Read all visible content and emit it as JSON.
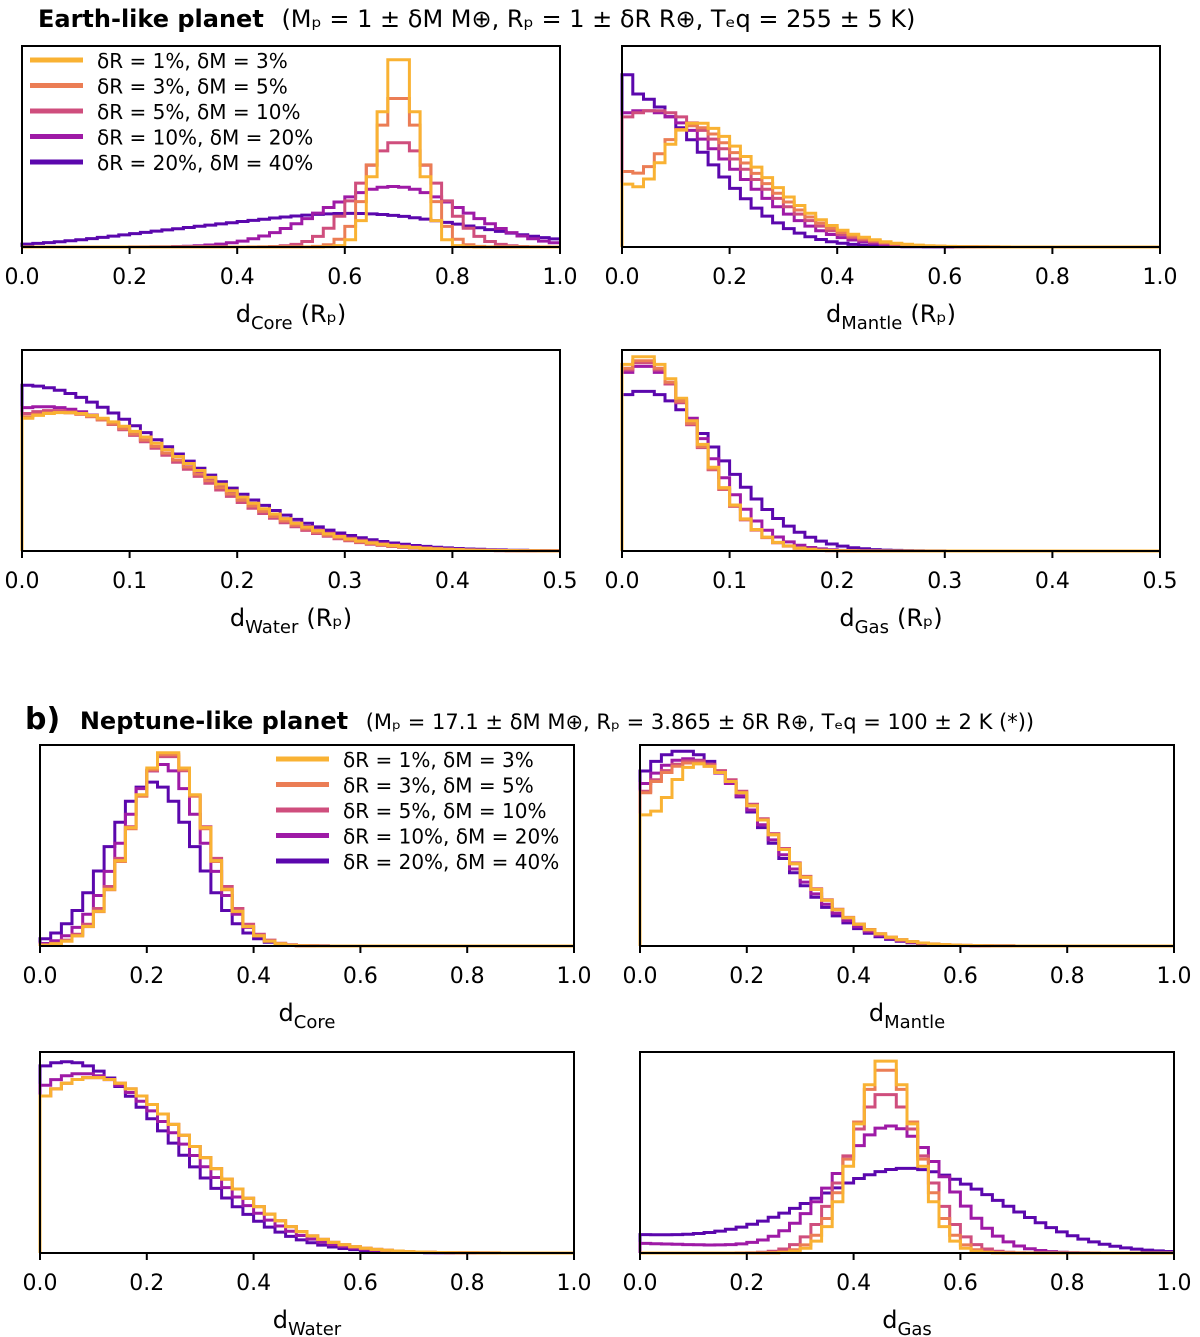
{
  "figure": {
    "series_colors": [
      "#F9B233",
      "#EB7D55",
      "#CF4E7D",
      "#9E1AA6",
      "#5B07AD"
    ],
    "legend": [
      {
        "label": "δR = 1%, δM = 3%",
        "color": "#F9B233"
      },
      {
        "label": "δR = 3%, δM = 5%",
        "color": "#EB7D55"
      },
      {
        "label": "δR = 5%, δM = 10%",
        "color": "#CF4E7D"
      },
      {
        "label": "δR = 10%, δM = 20%",
        "color": "#9E1AA6"
      },
      {
        "label": "δR = 20%, δM = 40%",
        "color": "#5B07AD"
      }
    ],
    "section_a": {
      "panel_letter": "",
      "title_bold": "Earth-like planet",
      "title_params": "(Mₚ = 1 ± δM M⊕, Rₚ = 1 ± δR R⊕, Tₑq = 255 ± 5 K)"
    },
    "section_b": {
      "panel_letter": "b)",
      "title_bold": "Neptune-like planet",
      "title_params": "(Mₚ = 17.1 ± δM M⊕, Rₚ = 3.865 ± δR R⊕, Tₑq = 100 ± 2 K (*))"
    }
  },
  "chart_data": [
    {
      "type": "histogram-step",
      "section": "a",
      "xlabel_main": "d",
      "xlabel_sub": "Core",
      "xlabel_unit": "(Rₚ)",
      "xlim": [
        0,
        1
      ],
      "xticks": [
        0.0,
        0.2,
        0.4,
        0.6,
        0.8,
        1.0
      ],
      "tick_labels": [
        "0.0",
        "0.2",
        "0.4",
        "0.6",
        "0.8",
        "1.0"
      ],
      "ylim": [
        0,
        1.03
      ],
      "yticks": false,
      "series": [
        {
          "name": "δR = 1%, δM = 3%",
          "peaks": [
            [
              0.7,
              0.035,
              1.0
            ]
          ],
          "baseline": 0.0
        },
        {
          "name": "δR = 3%, δM = 5%",
          "peaks": [
            [
              0.7,
              0.045,
              0.78
            ]
          ],
          "baseline": 0.0
        },
        {
          "name": "δR = 5%, δM = 10%",
          "peaks": [
            [
              0.7,
              0.07,
              0.54
            ]
          ],
          "baseline": 0.0
        },
        {
          "name": "δR = 10%, δM = 20%",
          "peaks": [
            [
              0.69,
              0.13,
              0.31
            ]
          ],
          "baseline": 0.0
        },
        {
          "name": "δR = 20%, δM = 40%",
          "peaks": [
            [
              0.62,
              0.22,
              0.17
            ],
            [
              0.25,
              0.15,
              0.04
            ]
          ],
          "baseline": 0.0
        }
      ]
    },
    {
      "type": "histogram-step",
      "section": "a",
      "xlabel_main": "d",
      "xlabel_sub": "Mantle",
      "xlabel_unit": "(Rₚ)",
      "xlim": [
        0,
        1
      ],
      "xticks": [
        0.0,
        0.2,
        0.4,
        0.6,
        0.8,
        1.0
      ],
      "tick_labels": [
        "0.0",
        "0.2",
        "0.4",
        "0.6",
        "0.8",
        "1.0"
      ],
      "ylim": [
        0,
        1.03
      ],
      "yticks": false,
      "series": [
        {
          "name": "δR = 1%, δM = 3%",
          "peaks": [
            [
              0.08,
              0.16,
              0.72
            ]
          ],
          "baseline": 0.0,
          "dip": [
            0.03,
            0.05,
            0.45
          ]
        },
        {
          "name": "δR = 3%, δM = 5%",
          "peaks": [
            [
              0.07,
              0.16,
              0.71
            ]
          ],
          "baseline": 0.0,
          "dip": [
            0.03,
            0.05,
            0.55
          ]
        },
        {
          "name": "δR = 5%, δM = 10%",
          "peaks": [
            [
              0.06,
              0.16,
              0.7
            ]
          ],
          "baseline": 0.0
        },
        {
          "name": "δR = 10%, δM = 20%",
          "peaks": [
            [
              0.04,
              0.16,
              0.7
            ]
          ],
          "baseline": 0.0
        },
        {
          "name": "δR = 20%, δM = 40%",
          "peaks": [
            [
              0.0,
              0.15,
              0.8
            ]
          ],
          "baseline": 0.0,
          "spike": [
            0.0,
            0.02,
            1.0
          ]
        }
      ]
    },
    {
      "type": "histogram-step",
      "section": "a",
      "xlabel_main": "d",
      "xlabel_sub": "Water",
      "xlabel_unit": "(Rₚ)",
      "xlim": [
        0,
        0.5
      ],
      "xticks": [
        0.0,
        0.1,
        0.2,
        0.3,
        0.4,
        0.5
      ],
      "tick_labels": [
        "0.0",
        "0.1",
        "0.2",
        "0.3",
        "0.4",
        "0.5"
      ],
      "ylim": [
        0,
        1.03
      ],
      "yticks": false,
      "series": [
        {
          "name": "δR = 1%, δM = 3%",
          "peaks": [
            [
              0.04,
              0.12,
              0.71
            ]
          ],
          "baseline": 0.0
        },
        {
          "name": "δR = 3%, δM = 5%",
          "peaks": [
            [
              0.035,
              0.12,
              0.71
            ]
          ],
          "baseline": 0.0
        },
        {
          "name": "δR = 5%, δM = 10%",
          "peaks": [
            [
              0.03,
              0.12,
              0.72
            ]
          ],
          "baseline": 0.0
        },
        {
          "name": "δR = 10%, δM = 20%",
          "peaks": [
            [
              0.02,
              0.13,
              0.74
            ]
          ],
          "baseline": 0.0
        },
        {
          "name": "δR = 20%, δM = 40%",
          "peaks": [
            [
              0.0,
              0.14,
              0.85
            ]
          ],
          "baseline": 0.0
        }
      ]
    },
    {
      "type": "histogram-step",
      "section": "a",
      "xlabel_main": "d",
      "xlabel_sub": "Gas",
      "xlabel_unit": "(Rₚ)",
      "xlim": [
        0,
        0.5
      ],
      "xticks": [
        0.0,
        0.1,
        0.2,
        0.3,
        0.4,
        0.5
      ],
      "tick_labels": [
        "0.0",
        "0.1",
        "0.2",
        "0.3",
        "0.4",
        "0.5"
      ],
      "ylim": [
        0,
        1.03
      ],
      "yticks": false,
      "series": [
        {
          "name": "δR = 1%, δM = 3%",
          "peaks": [
            [
              0.02,
              0.05,
              1.0
            ]
          ],
          "baseline": 0.0
        },
        {
          "name": "δR = 3%, δM = 5%",
          "peaks": [
            [
              0.02,
              0.05,
              0.98
            ]
          ],
          "baseline": 0.0
        },
        {
          "name": "δR = 5%, δM = 10%",
          "peaks": [
            [
              0.02,
              0.05,
              0.97
            ]
          ],
          "baseline": 0.0
        },
        {
          "name": "δR = 10%, δM = 20%",
          "peaks": [
            [
              0.02,
              0.055,
              0.95
            ]
          ],
          "baseline": 0.0
        },
        {
          "name": "δR = 20%, δM = 40%",
          "peaks": [
            [
              0.02,
              0.07,
              0.82
            ]
          ],
          "baseline": 0.0
        }
      ]
    },
    {
      "type": "histogram-step",
      "section": "b",
      "xlabel_main": "d",
      "xlabel_sub": "Core",
      "xlabel_unit": "",
      "xlim": [
        0,
        1
      ],
      "xticks": [
        0.0,
        0.2,
        0.4,
        0.6,
        0.8,
        1.0
      ],
      "tick_labels": [
        "0.0",
        "0.2",
        "0.4",
        "0.6",
        "0.8",
        "1.0"
      ],
      "ylim": [
        0,
        1.03
      ],
      "yticks": false,
      "series": [
        {
          "name": "δR = 1%, δM = 3%",
          "peaks": [
            [
              0.24,
              0.07,
              1.0
            ]
          ],
          "baseline": 0.0
        },
        {
          "name": "δR = 3%, δM = 5%",
          "peaks": [
            [
              0.24,
              0.07,
              0.99
            ]
          ],
          "baseline": 0.0
        },
        {
          "name": "δR = 5%, δM = 10%",
          "peaks": [
            [
              0.24,
              0.072,
              0.98
            ]
          ],
          "baseline": 0.0
        },
        {
          "name": "δR = 10%, δM = 20%",
          "peaks": [
            [
              0.23,
              0.075,
              0.93
            ]
          ],
          "baseline": 0.0
        },
        {
          "name": "δR = 20%, δM = 40%",
          "peaks": [
            [
              0.21,
              0.08,
              0.84
            ]
          ],
          "baseline": 0.0
        }
      ]
    },
    {
      "type": "histogram-step",
      "section": "b",
      "xlabel_main": "d",
      "xlabel_sub": "Mantle",
      "xlabel_unit": "",
      "xlim": [
        0,
        1
      ],
      "xticks": [
        0.0,
        0.2,
        0.4,
        0.6,
        0.8,
        1.0
      ],
      "tick_labels": [
        "0.0",
        "0.2",
        "0.4",
        "0.6",
        "0.8",
        "1.0"
      ],
      "ylim": [
        0,
        1.03
      ],
      "yticks": false,
      "series": [
        {
          "name": "δR = 1%, δM = 3%",
          "peaks": [
            [
              0.1,
              0.15,
              0.94
            ]
          ],
          "baseline": 0.0,
          "dip": [
            0.03,
            0.03,
            0.82
          ]
        },
        {
          "name": "δR = 3%, δM = 5%",
          "peaks": [
            [
              0.1,
              0.15,
              0.94
            ]
          ],
          "baseline": 0.0
        },
        {
          "name": "δR = 5%, δM = 10%",
          "peaks": [
            [
              0.1,
              0.15,
              0.95
            ]
          ],
          "baseline": 0.0
        },
        {
          "name": "δR = 10%, δM = 20%",
          "peaks": [
            [
              0.09,
              0.15,
              0.96
            ]
          ],
          "baseline": 0.0
        },
        {
          "name": "δR = 20%, δM = 40%",
          "peaks": [
            [
              0.08,
              0.15,
              1.0
            ]
          ],
          "baseline": 0.0
        }
      ]
    },
    {
      "type": "histogram-step",
      "section": "b",
      "xlabel_main": "d",
      "xlabel_sub": "Water",
      "xlabel_unit": "",
      "xlim": [
        0,
        1
      ],
      "xticks": [
        0.0,
        0.2,
        0.4,
        0.6,
        0.8,
        1.0
      ],
      "tick_labels": [
        "0.0",
        "0.2",
        "0.4",
        "0.6",
        "0.8",
        "1.0"
      ],
      "ylim": [
        0,
        1.03
      ],
      "yticks": false,
      "series": [
        {
          "name": "δR = 1%, δM = 3%",
          "peaks": [
            [
              0.1,
              0.19,
              0.9
            ]
          ],
          "baseline": 0.0
        },
        {
          "name": "δR = 3%, δM = 5%",
          "peaks": [
            [
              0.1,
              0.19,
              0.9
            ]
          ],
          "baseline": 0.0
        },
        {
          "name": "δR = 5%, δM = 10%",
          "peaks": [
            [
              0.1,
              0.19,
              0.9
            ]
          ],
          "baseline": 0.0
        },
        {
          "name": "δR = 10%, δM = 20%",
          "peaks": [
            [
              0.08,
              0.19,
              0.92
            ]
          ],
          "baseline": 0.0
        },
        {
          "name": "δR = 20%, δM = 40%",
          "peaks": [
            [
              0.05,
              0.19,
              0.98
            ]
          ],
          "baseline": 0.0
        }
      ]
    },
    {
      "type": "histogram-step",
      "section": "b",
      "xlabel_main": "d",
      "xlabel_sub": "Gas",
      "xlabel_unit": "",
      "xlim": [
        0,
        1
      ],
      "xticks": [
        0.0,
        0.2,
        0.4,
        0.6,
        0.8,
        1.0
      ],
      "tick_labels": [
        "0.0",
        "0.2",
        "0.4",
        "0.6",
        "0.8",
        "1.0"
      ],
      "ylim": [
        0,
        1.03
      ],
      "yticks": false,
      "series": [
        {
          "name": "δR = 1%, δM = 3%",
          "peaks": [
            [
              0.46,
              0.055,
              1.0
            ]
          ],
          "baseline": 0.0
        },
        {
          "name": "δR = 3%, δM = 5%",
          "peaks": [
            [
              0.46,
              0.06,
              0.95
            ]
          ],
          "baseline": 0.0
        },
        {
          "name": "δR = 5%, δM = 10%",
          "peaks": [
            [
              0.46,
              0.07,
              0.82
            ]
          ],
          "baseline": 0.0
        },
        {
          "name": "δR = 10%, δM = 20%",
          "peaks": [
            [
              0.47,
              0.1,
              0.64
            ]
          ],
          "baseline": 0.0,
          "tail": 0.05
        },
        {
          "name": "δR = 20%, δM = 40%",
          "peaks": [
            [
              0.51,
              0.17,
              0.42
            ]
          ],
          "baseline": 0.0,
          "tail": 0.09
        }
      ]
    }
  ]
}
